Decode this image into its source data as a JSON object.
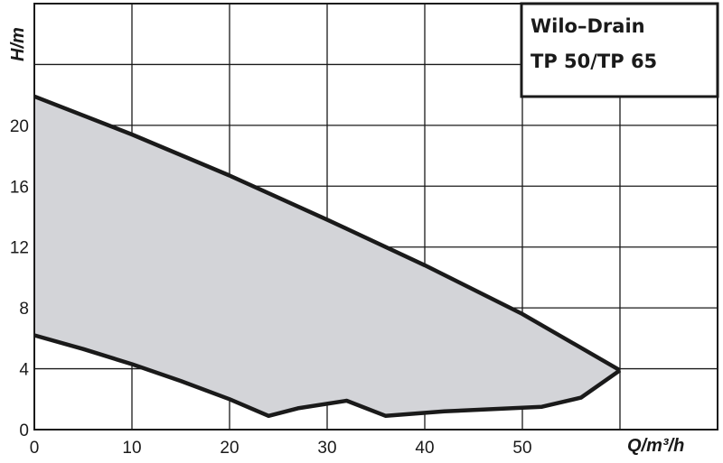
{
  "chart_data": {
    "type": "area",
    "title_lines": [
      "Wilo–Drain",
      "TP 50/TP 65"
    ],
    "xlabel": "Q/m³/h",
    "ylabel": "H/m",
    "xlim": [
      0,
      70
    ],
    "ylim": [
      0,
      28
    ],
    "x_ticks": [
      "0",
      "10",
      "20",
      "30",
      "40",
      "50"
    ],
    "y_ticks": [
      "0",
      "4",
      "8",
      "12",
      "16",
      "20"
    ],
    "grid": true,
    "fill_color": "#d3d4d8",
    "line_color": "#1a1a1a",
    "upper_curve": {
      "x": [
        0,
        10,
        20,
        30,
        40,
        50,
        60
      ],
      "y": [
        21.9,
        19.4,
        16.7,
        13.8,
        10.8,
        7.6,
        3.9
      ]
    },
    "lower_curve": {
      "x": [
        0,
        5,
        10,
        15,
        20,
        24,
        27,
        32,
        36,
        42,
        52,
        56,
        60
      ],
      "y": [
        6.2,
        5.3,
        4.3,
        3.2,
        2.0,
        0.9,
        1.4,
        1.9,
        0.9,
        1.2,
        1.5,
        2.1,
        3.9
      ]
    }
  }
}
